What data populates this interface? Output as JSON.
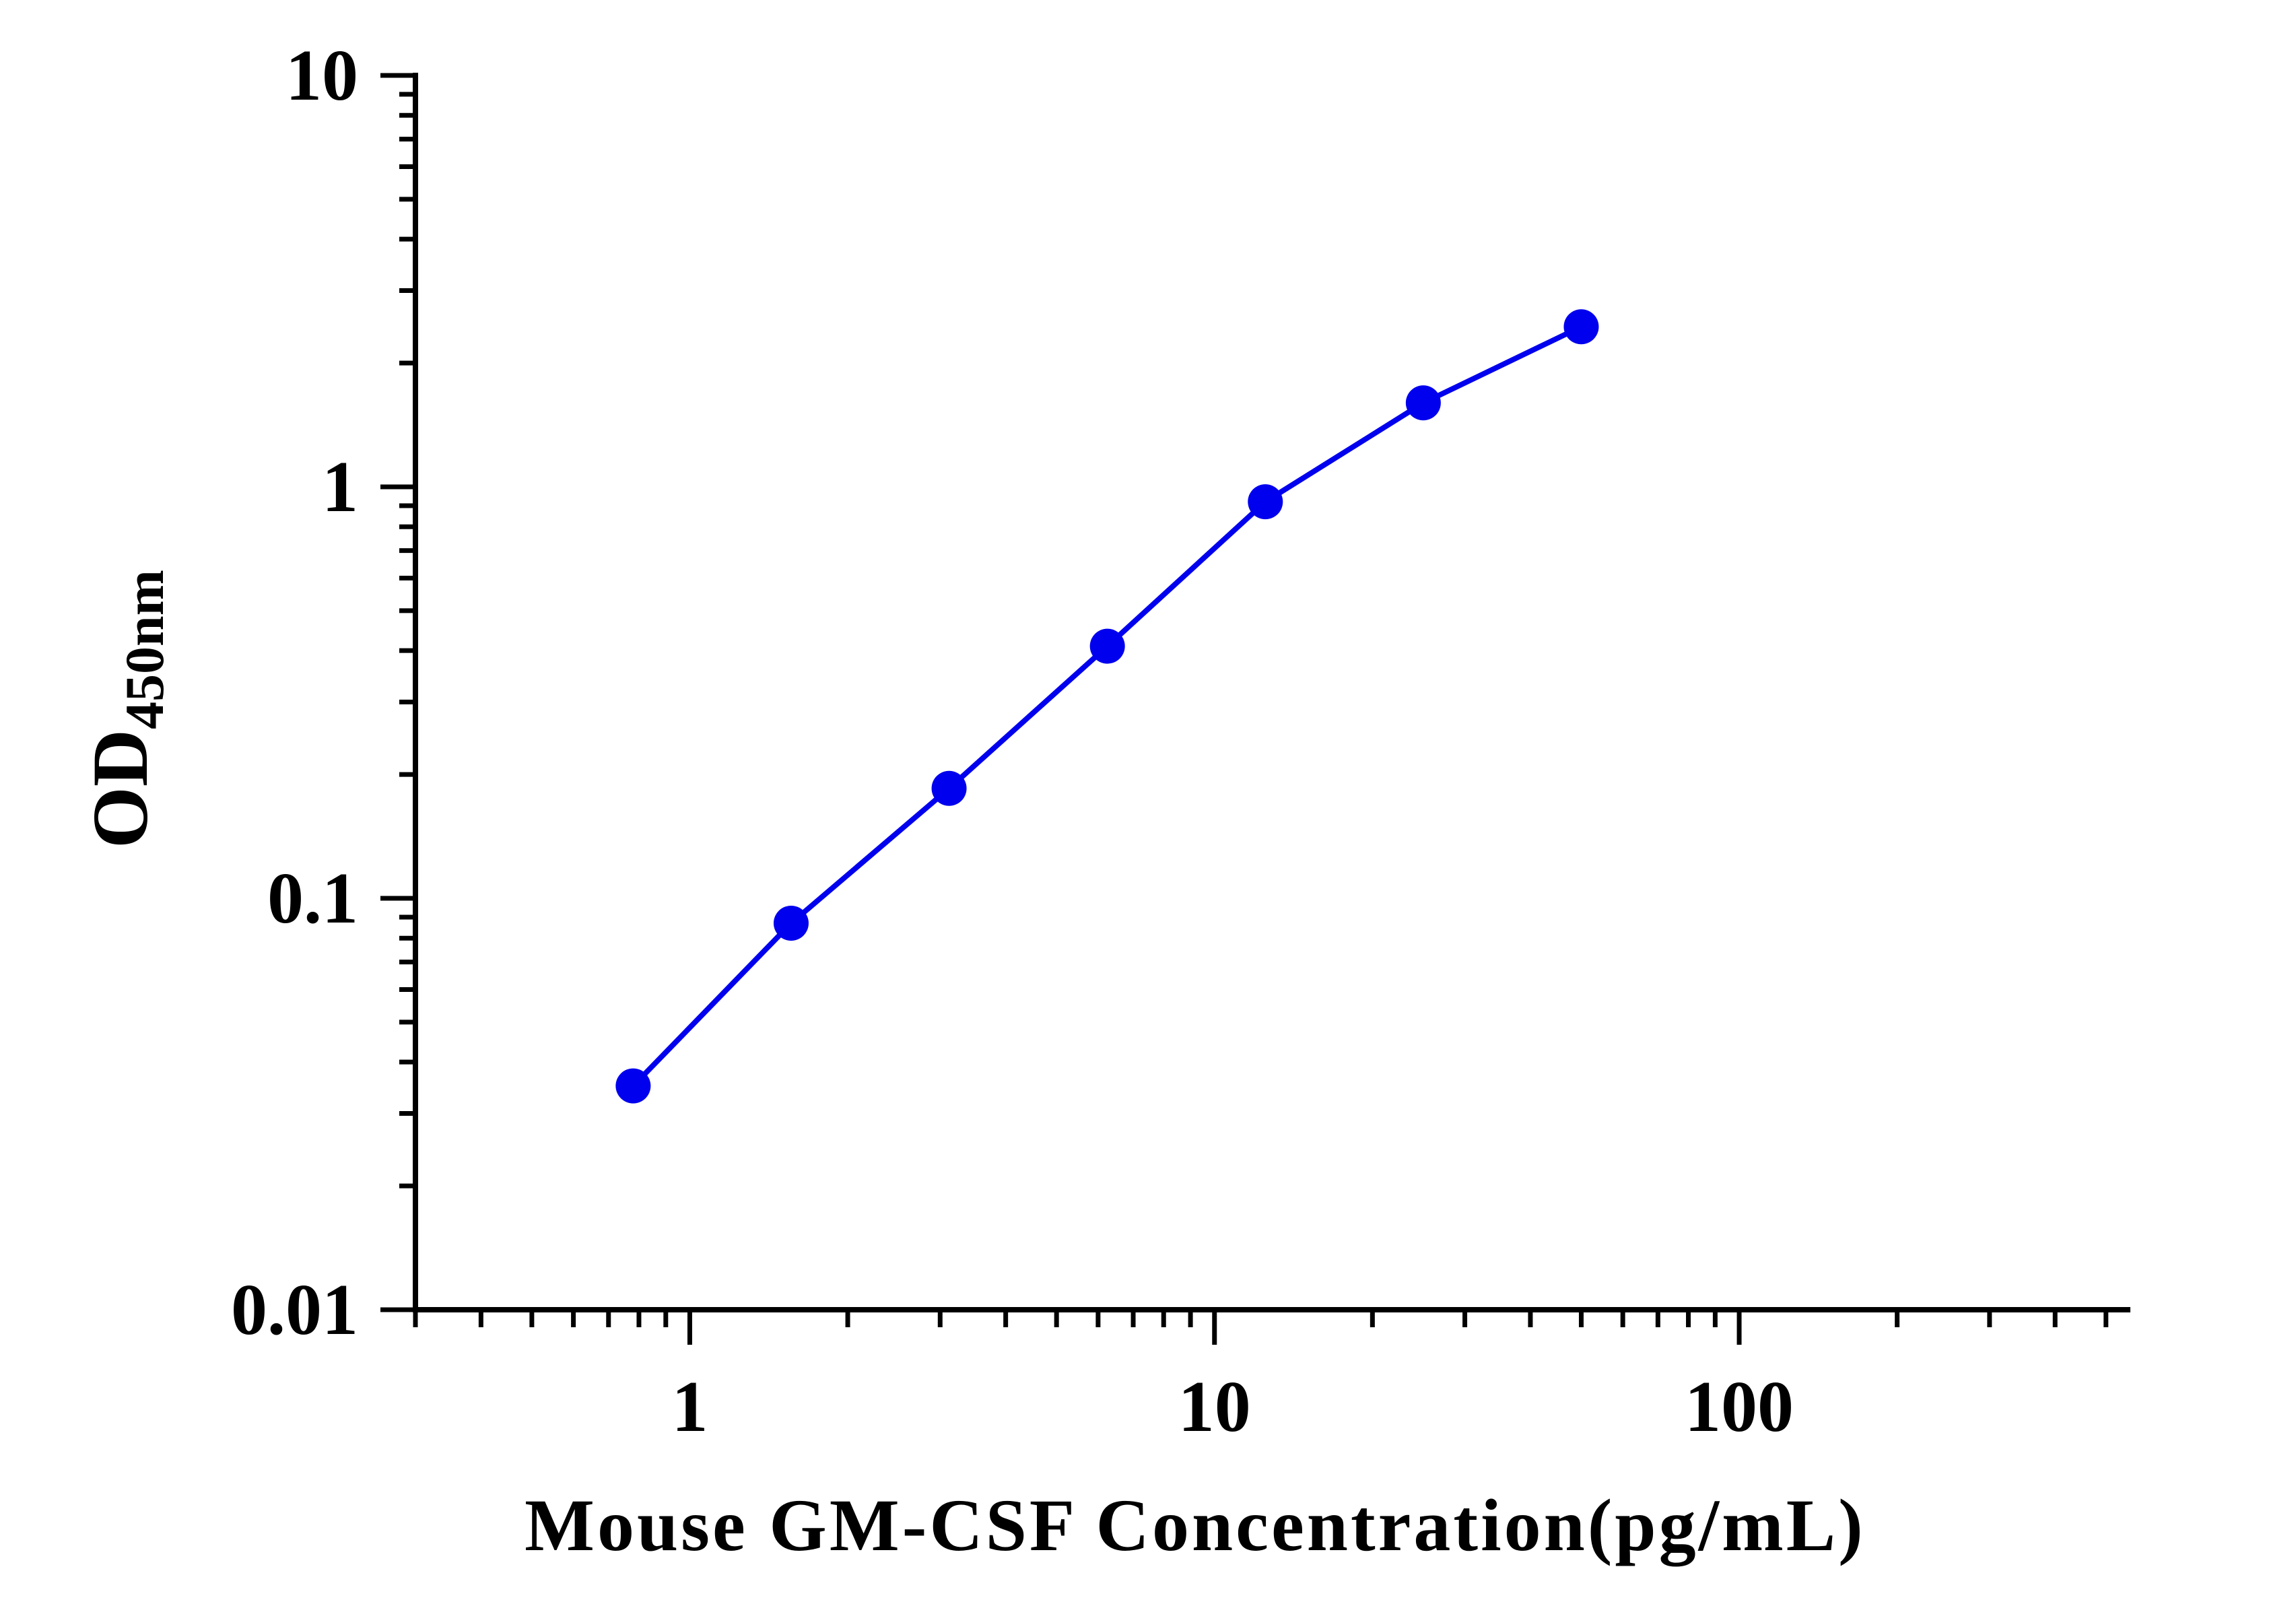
{
  "chart_data": {
    "type": "line",
    "title": "",
    "xlabel": "Mouse GM-CSF Concentration(pg/mL)",
    "ylabel": {
      "main": "OD",
      "subscript": "450nm"
    },
    "x_scale": "log",
    "y_scale": "log",
    "xlim": [
      0.3,
      550
    ],
    "ylim": [
      0.01,
      10
    ],
    "x_tick_labels": [
      {
        "value": 1,
        "label": "1"
      },
      {
        "value": 10,
        "label": "10"
      },
      {
        "value": 100,
        "label": "100"
      }
    ],
    "y_tick_labels": [
      {
        "value": 0.01,
        "label": "0.01"
      },
      {
        "value": 0.1,
        "label": "0.1"
      },
      {
        "value": 1,
        "label": "1"
      },
      {
        "value": 10,
        "label": "10"
      }
    ],
    "grid": false,
    "legend": "none",
    "series": [
      {
        "color": "#0000ee",
        "x": [
          0.78,
          1.56,
          3.12,
          6.25,
          12.5,
          25,
          50
        ],
        "y": [
          0.035,
          0.087,
          0.185,
          0.41,
          0.92,
          1.6,
          2.45
        ]
      }
    ]
  }
}
